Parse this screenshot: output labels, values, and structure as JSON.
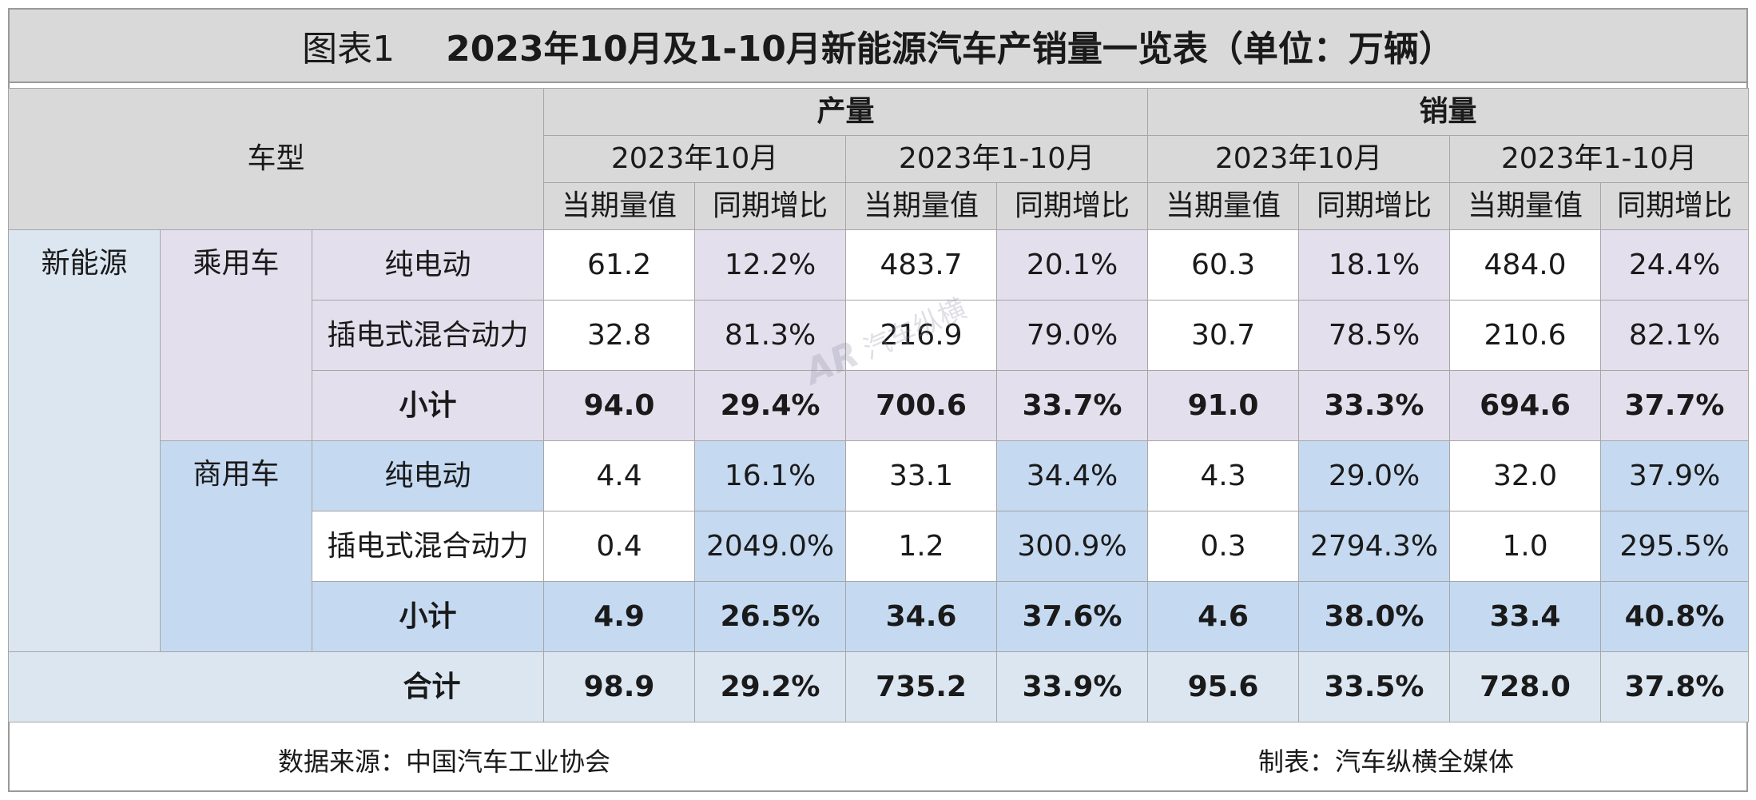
{
  "title": {
    "prefix": "图表1",
    "main": "2023年10月及1-10月新能源汽车产销量一览表（单位：万辆）"
  },
  "header": {
    "vehicle_type": "车型",
    "production": "产量",
    "sales": "销量",
    "period_month": "2023年10月",
    "period_ytd": "2023年1-10月",
    "value": "当期量值",
    "yoy": "同期增比"
  },
  "labels": {
    "nev": "新能源",
    "passenger": "乘用车",
    "commercial": "商用车",
    "bev": "纯电动",
    "phev": "插电式混合动力",
    "subtotal": "小计",
    "total": "合计"
  },
  "rows": {
    "passenger_bev": [
      "61.2",
      "12.2%",
      "483.7",
      "20.1%",
      "60.3",
      "18.1%",
      "484.0",
      "24.4%"
    ],
    "passenger_phev": [
      "32.8",
      "81.3%",
      "216.9",
      "79.0%",
      "30.7",
      "78.5%",
      "210.6",
      "82.1%"
    ],
    "passenger_subtotal": [
      "94.0",
      "29.4%",
      "700.6",
      "33.7%",
      "91.0",
      "33.3%",
      "694.6",
      "37.7%"
    ],
    "commercial_bev": [
      "4.4",
      "16.1%",
      "33.1",
      "34.4%",
      "4.3",
      "29.0%",
      "32.0",
      "37.9%"
    ],
    "commercial_phev": [
      "0.4",
      "2049.0%",
      "1.2",
      "300.9%",
      "0.3",
      "2794.3%",
      "1.0",
      "295.5%"
    ],
    "commercial_subtotal": [
      "4.9",
      "26.5%",
      "34.6",
      "37.6%",
      "4.6",
      "38.0%",
      "33.4",
      "40.8%"
    ],
    "total": [
      "98.9",
      "29.2%",
      "735.2",
      "33.9%",
      "95.6",
      "33.5%",
      "728.0",
      "37.8%"
    ]
  },
  "footer": {
    "source": "数据来源：中国汽车工业协会",
    "maker": "制表：汽车纵横全媒体"
  },
  "watermark": {
    "logo": "AR",
    "text": "汽车纵横"
  },
  "colors": {
    "header_gray": "#d9d9d9",
    "passenger_lavender": "#e4dfec",
    "commercial_blue": "#c5d9f1",
    "nev_pale_blue": "#dce6f1"
  }
}
